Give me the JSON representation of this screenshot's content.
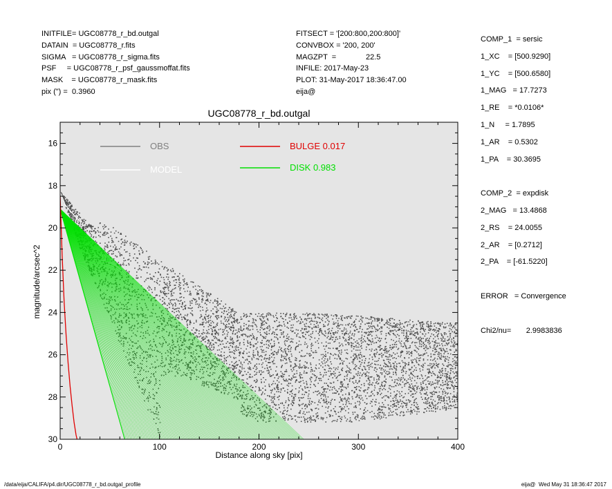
{
  "header_left": [
    "INITFILE= UGC08778_r_bd.outgal",
    "DATAIN  = UGC08778_r.fits",
    "SIGMA   = UGC08778_r_sigma.fits",
    "PSF     = UGC08778_r_psf_gaussmoffat.fits",
    "MASK    = UGC08778_r_mask.fits",
    "pix (\") =  0.3960"
  ],
  "header_mid": [
    "FITSECT = '[200:800,200:800]'",
    "CONVBOX = '200, 200'",
    "MAGZPT  =              22.5",
    "INFILE: 2017-May-23",
    "PLOT: 31-May-2017 18:36:47.00",
    "eija@"
  ],
  "header_right": [
    "COMP_1  = sersic",
    "1_XC    = [500.9290]",
    "1_YC    = [500.6580]",
    "1_MAG   = 17.7273",
    "1_RE    = *0.0106*",
    "1_N     = 1.7895",
    "1_AR    = 0.5302",
    "1_PA    = 30.3695",
    "",
    "COMP_2  = expdisk",
    "2_MAG   = 13.4868",
    "2_RS    = 24.0055",
    "2_AR    = [0.2712]",
    "2_PA    = [-61.5220]",
    "",
    "ERROR   = Convergence",
    "",
    "Chi2/nu=       2.9983836"
  ],
  "footer_left": "/data/eija/CALIFA/p4.dir/UGC08778_r_bd.outgal_profile",
  "footer_right": "eija@  Wed May 31 18:36:47 2017",
  "colors": {
    "plot_bg": "#e5e5e5",
    "obs": "#505050",
    "obs_legend": "#808080",
    "model": "#ffffff",
    "bulge": "#e00000",
    "disk": "#00e000"
  },
  "chart_data": {
    "type": "scatter",
    "title": "UGC08778_r_bd.outgal",
    "xlabel": "Distance along sky [pix]",
    "ylabel": "magnitude/arcsec^2",
    "xlim": [
      0,
      400
    ],
    "ylim": [
      30,
      15
    ],
    "y_inverted": true,
    "x_ticks": [
      0,
      100,
      200,
      300,
      400
    ],
    "y_ticks": [
      16,
      18,
      20,
      22,
      24,
      26,
      28,
      30
    ],
    "grid": false,
    "legend": [
      {
        "label": "OBS",
        "color": "#808080",
        "position": "top-left"
      },
      {
        "label": "MODEL",
        "color": "#ffffff",
        "position": "top-left"
      },
      {
        "label": "BULGE  0.017",
        "color": "#e00000",
        "position": "top-center"
      },
      {
        "label": "DISK  0.983",
        "color": "#00e000",
        "position": "top-center"
      }
    ],
    "series": [
      {
        "name": "OBS",
        "kind": "scatter-cloud",
        "inner_edge": [
          [
            0,
            18.3
          ],
          [
            20,
            21.0
          ],
          [
            60,
            25.5
          ],
          [
            100,
            30.0
          ]
        ],
        "outer_edge": [
          [
            0,
            18.3
          ],
          [
            30,
            19.8
          ],
          [
            45,
            19.7
          ],
          [
            100,
            21.5
          ],
          [
            180,
            24.0
          ],
          [
            250,
            24.0
          ],
          [
            320,
            24.2
          ],
          [
            400,
            24.5
          ]
        ],
        "floor": [
          [
            120,
            27.0
          ],
          [
            200,
            28.5
          ],
          [
            300,
            28.5
          ],
          [
            400,
            28.0
          ]
        ],
        "points_estimate": 9000
      },
      {
        "name": "DISK",
        "kind": "fan",
        "apex": [
          0,
          19.1
        ],
        "inner_edge_end": [
          65,
          30.0
        ],
        "outer_edge_end": [
          245,
          30.0
        ]
      },
      {
        "name": "BULGE",
        "kind": "line",
        "x": [
          0,
          2,
          4,
          6,
          8,
          10,
          12,
          14,
          16,
          17
        ],
        "y": [
          18.5,
          21.3,
          23.5,
          25.1,
          26.4,
          27.5,
          28.4,
          29.2,
          29.8,
          30.0
        ]
      },
      {
        "name": "MODEL",
        "kind": "line",
        "x": [
          0,
          5,
          10,
          20
        ],
        "y": [
          18.3,
          18.9,
          19.2,
          19.7
        ]
      }
    ]
  }
}
